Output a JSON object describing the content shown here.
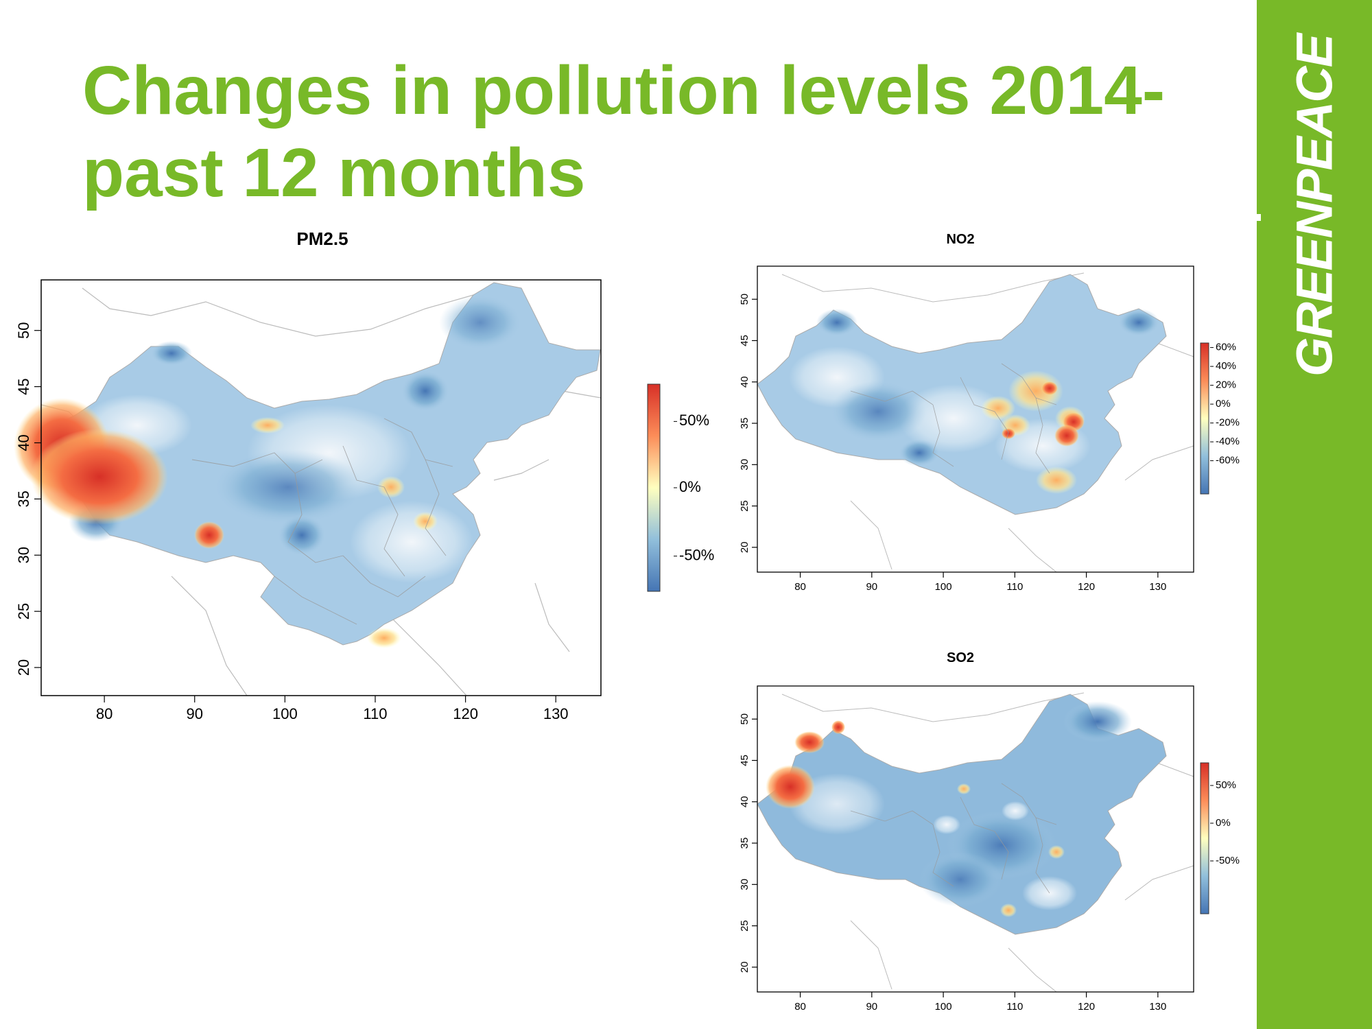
{
  "slide": {
    "title": "Changes in pollution levels 2014- past 12 months",
    "brand": "GREENPEACE",
    "brand_color": "#78b928"
  },
  "maps": [
    {
      "id": "pm25",
      "title": "PM2.5",
      "x_ticks": [
        "80",
        "90",
        "100",
        "110",
        "120",
        "130"
      ],
      "y_ticks": [
        "20",
        "25",
        "30",
        "35",
        "40",
        "45",
        "50"
      ],
      "legend_labels": [
        "50%",
        "0%",
        "-50%"
      ]
    },
    {
      "id": "no2",
      "title": "NO2",
      "x_ticks": [
        "80",
        "90",
        "100",
        "110",
        "120",
        "130"
      ],
      "y_ticks": [
        "20",
        "25",
        "30",
        "35",
        "40",
        "45",
        "50"
      ],
      "legend_labels": [
        "60%",
        "40%",
        "20%",
        "0%",
        "-20%",
        "-40%",
        "-60%"
      ]
    },
    {
      "id": "so2",
      "title": "SO2",
      "x_ticks": [
        "80",
        "90",
        "100",
        "110",
        "120",
        "130"
      ],
      "y_ticks": [
        "20",
        "25",
        "30",
        "35",
        "40",
        "45",
        "50"
      ],
      "legend_labels": [
        "50%",
        "0%",
        "-50%"
      ]
    }
  ],
  "colors": {
    "high": "#d73027",
    "mid": "#ffffbf",
    "low": "#4575b4",
    "base_fill": "#a8cbe6"
  }
}
